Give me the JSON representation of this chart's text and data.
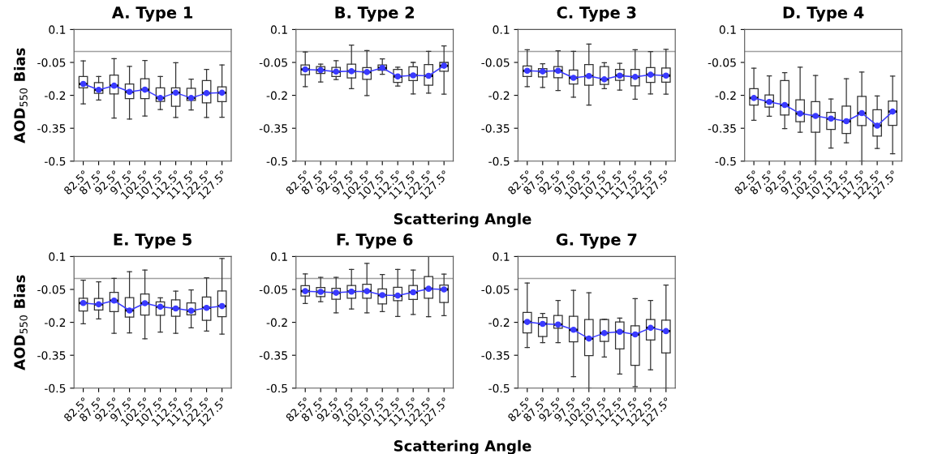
{
  "chart_data": [
    {
      "type": "box",
      "title": "A. Type 1",
      "ylabel": "AOD$_{550}$ Bias",
      "categories": [
        "82.5°",
        "87.5°",
        "92.5°",
        "97.5°",
        "102.5°",
        "107.5°",
        "112.5°",
        "117.5°",
        "122.5°",
        "127.5°"
      ],
      "ylim": [
        -0.5,
        0.1
      ],
      "yticks": [
        0.1,
        -0.05,
        -0.2,
        -0.35,
        -0.5
      ],
      "ref_lines": [
        {
          "axis": "y",
          "value": 0,
          "color": "#a0a0a0"
        }
      ],
      "marker": "circle",
      "boxes": [
        {
          "low": -0.239,
          "q1": -0.166,
          "median": -0.148,
          "q3": -0.114,
          "high": -0.043
        },
        {
          "low": -0.221,
          "q1": -0.191,
          "median": -0.175,
          "q3": -0.142,
          "high": -0.114
        },
        {
          "low": -0.304,
          "q1": -0.194,
          "median": -0.156,
          "q3": -0.108,
          "high": -0.033
        },
        {
          "low": -0.308,
          "q1": -0.215,
          "median": -0.184,
          "q3": -0.148,
          "high": -0.068
        },
        {
          "low": -0.294,
          "q1": -0.215,
          "median": -0.174,
          "q3": -0.124,
          "high": -0.041
        },
        {
          "low": -0.265,
          "q1": -0.228,
          "median": -0.212,
          "q3": -0.166,
          "high": -0.114
        },
        {
          "low": -0.301,
          "q1": -0.25,
          "median": -0.188,
          "q3": -0.166,
          "high": -0.051
        },
        {
          "low": -0.267,
          "q1": -0.223,
          "median": -0.212,
          "q3": -0.168,
          "high": -0.126
        },
        {
          "low": -0.301,
          "q1": -0.234,
          "median": -0.19,
          "q3": -0.133,
          "high": -0.082
        },
        {
          "low": -0.3,
          "q1": -0.229,
          "median": -0.188,
          "q3": -0.161,
          "high": -0.062
        }
      ],
      "series": [
        {
          "type": "line",
          "color": "#3a3aff",
          "values": [
            -0.148,
            -0.175,
            -0.156,
            -0.184,
            -0.174,
            -0.212,
            -0.188,
            -0.212,
            -0.19,
            -0.188
          ]
        }
      ]
    },
    {
      "type": "box",
      "title": "B. Type 2",
      "xlabel": "Scattering Angle",
      "categories": [
        "82.5°",
        "87.5°",
        "92.5°",
        "97.5°",
        "102.5°",
        "107.5°",
        "112.5°",
        "117.5°",
        "122.5°",
        "127.5°"
      ],
      "ylim": [
        -0.5,
        0.1
      ],
      "yticks": [
        0.1,
        -0.05,
        -0.2,
        -0.35,
        -0.5
      ],
      "ref_lines": [
        {
          "axis": "y",
          "value": 0,
          "color": "#a0a0a0"
        }
      ],
      "marker": "circle",
      "boxes": [
        {
          "low": -0.16,
          "q1": -0.106,
          "median": -0.082,
          "q3": -0.062,
          "high": -0.002
        },
        {
          "low": -0.139,
          "q1": -0.1,
          "median": -0.085,
          "q3": -0.069,
          "high": -0.058
        },
        {
          "low": -0.128,
          "q1": -0.114,
          "median": -0.092,
          "q3": -0.073,
          "high": -0.042
        },
        {
          "low": -0.17,
          "q1": -0.121,
          "median": -0.09,
          "q3": -0.058,
          "high": 0.029
        },
        {
          "low": -0.201,
          "q1": -0.127,
          "median": -0.094,
          "q3": -0.074,
          "high": 0.004
        },
        {
          "low": -0.104,
          "q1": -0.086,
          "median": -0.075,
          "q3": -0.062,
          "high": -0.034
        },
        {
          "low": -0.158,
          "q1": -0.141,
          "median": -0.114,
          "q3": -0.082,
          "high": -0.072
        },
        {
          "low": -0.194,
          "q1": -0.133,
          "median": -0.109,
          "q3": -0.07,
          "high": -0.05
        },
        {
          "low": -0.19,
          "q1": -0.154,
          "median": -0.111,
          "q3": -0.06,
          "high": 0.0
        },
        {
          "low": -0.195,
          "q1": -0.09,
          "median": -0.065,
          "q3": -0.05,
          "high": 0.025
        }
      ],
      "series": [
        {
          "type": "line",
          "color": "#3a3aff",
          "values": [
            -0.082,
            -0.085,
            -0.092,
            -0.09,
            -0.094,
            -0.075,
            -0.114,
            -0.109,
            -0.111,
            -0.065
          ]
        }
      ]
    },
    {
      "type": "box",
      "title": "C. Type 3",
      "categories": [
        "82.5°",
        "87.5°",
        "92.5°",
        "97.5°",
        "102.5°",
        "107.5°",
        "112.5°",
        "117.5°",
        "122.5°",
        "127.5°"
      ],
      "ylim": [
        -0.5,
        0.1
      ],
      "yticks": [
        0.1,
        -0.05,
        -0.2,
        -0.35,
        -0.5
      ],
      "ref_lines": [
        {
          "axis": "y",
          "value": 0,
          "color": "#a0a0a0"
        }
      ],
      "marker": "circle",
      "boxes": [
        {
          "low": -0.16,
          "q1": -0.114,
          "median": -0.088,
          "q3": -0.066,
          "high": 0.008
        },
        {
          "low": -0.164,
          "q1": -0.116,
          "median": -0.091,
          "q3": -0.078,
          "high": -0.056
        },
        {
          "low": -0.178,
          "q1": -0.12,
          "median": -0.088,
          "q3": -0.069,
          "high": 0.003
        },
        {
          "low": -0.208,
          "q1": -0.148,
          "median": -0.12,
          "q3": -0.085,
          "high": 0.0
        },
        {
          "low": -0.244,
          "q1": -0.154,
          "median": -0.112,
          "q3": -0.06,
          "high": 0.034
        },
        {
          "low": -0.17,
          "q1": -0.15,
          "median": -0.127,
          "q3": -0.069,
          "high": -0.051
        },
        {
          "low": -0.176,
          "q1": -0.132,
          "median": -0.11,
          "q3": -0.082,
          "high": -0.054
        },
        {
          "low": -0.218,
          "q1": -0.157,
          "median": -0.116,
          "q3": -0.082,
          "high": 0.008
        },
        {
          "low": -0.194,
          "q1": -0.141,
          "median": -0.106,
          "q3": -0.074,
          "high": -0.001
        },
        {
          "low": -0.195,
          "q1": -0.14,
          "median": -0.11,
          "q3": -0.075,
          "high": 0.01
        }
      ],
      "series": [
        {
          "type": "line",
          "color": "#3a3aff",
          "values": [
            -0.088,
            -0.091,
            -0.088,
            -0.12,
            -0.112,
            -0.127,
            -0.11,
            -0.116,
            -0.106,
            -0.11
          ]
        }
      ]
    },
    {
      "type": "box",
      "title": "D. Type 4",
      "categories": [
        "82.5°",
        "87.5°",
        "92.5°",
        "97.5°",
        "102.5°",
        "107.5°",
        "112.5°",
        "117.5°",
        "122.5°",
        "127.5°"
      ],
      "ylim": [
        -0.5,
        0.1
      ],
      "yticks": [
        0.1,
        -0.05,
        -0.2,
        -0.35,
        -0.5
      ],
      "ref_lines": [
        {
          "axis": "y",
          "value": 0,
          "color": "#a0a0a0"
        }
      ],
      "marker": "circle",
      "boxes": [
        {
          "low": -0.314,
          "q1": -0.244,
          "median": -0.212,
          "q3": -0.17,
          "high": -0.076
        },
        {
          "low": -0.295,
          "q1": -0.254,
          "median": -0.23,
          "q3": -0.198,
          "high": -0.111
        },
        {
          "low": -0.352,
          "q1": -0.29,
          "median": -0.244,
          "q3": -0.133,
          "high": -0.097
        },
        {
          "low": -0.368,
          "q1": -0.32,
          "median": -0.283,
          "q3": -0.22,
          "high": -0.072
        },
        {
          "low": -0.5,
          "q1": -0.368,
          "median": -0.294,
          "q3": -0.229,
          "high": -0.11
        },
        {
          "low": -0.44,
          "q1": -0.355,
          "median": -0.306,
          "q3": -0.278,
          "high": -0.217
        },
        {
          "low": -0.416,
          "q1": -0.374,
          "median": -0.318,
          "q3": -0.249,
          "high": -0.124
        },
        {
          "low": -0.5,
          "q1": -0.338,
          "median": -0.281,
          "q3": -0.205,
          "high": -0.094
        },
        {
          "low": -0.442,
          "q1": -0.386,
          "median": -0.338,
          "q3": -0.266,
          "high": -0.203
        },
        {
          "low": -0.466,
          "q1": -0.337,
          "median": -0.274,
          "q3": -0.226,
          "high": -0.112
        }
      ],
      "series": [
        {
          "type": "line",
          "color": "#3a3aff",
          "values": [
            -0.212,
            -0.23,
            -0.244,
            -0.283,
            -0.294,
            -0.306,
            -0.318,
            -0.281,
            -0.338,
            -0.274
          ]
        }
      ]
    },
    {
      "type": "box",
      "title": "E. Type 5",
      "ylabel": "AOD$_{550}$ Bias",
      "categories": [
        "82.5°",
        "87.5°",
        "92.5°",
        "97.5°",
        "102.5°",
        "107.5°",
        "112.5°",
        "117.5°",
        "122.5°",
        "127.5°"
      ],
      "ylim": [
        -0.5,
        0.1
      ],
      "yticks": [
        0.1,
        -0.05,
        -0.2,
        -0.35,
        -0.5
      ],
      "ref_lines": [
        {
          "axis": "y",
          "value": 0,
          "color": "#a0a0a0"
        }
      ],
      "marker": "circle",
      "boxes": [
        {
          "low": -0.207,
          "q1": -0.148,
          "median": -0.112,
          "q3": -0.09,
          "high": -0.008
        },
        {
          "low": -0.184,
          "q1": -0.144,
          "median": -0.118,
          "q3": -0.091,
          "high": -0.015
        },
        {
          "low": -0.25,
          "q1": -0.151,
          "median": -0.101,
          "q3": -0.063,
          "high": 0.0
        },
        {
          "low": -0.248,
          "q1": -0.176,
          "median": -0.146,
          "q3": -0.087,
          "high": 0.031
        },
        {
          "low": -0.275,
          "q1": -0.167,
          "median": -0.113,
          "q3": -0.071,
          "high": 0.038
        },
        {
          "low": -0.244,
          "q1": -0.168,
          "median": -0.129,
          "q3": -0.107,
          "high": -0.088
        },
        {
          "low": -0.25,
          "q1": -0.172,
          "median": -0.137,
          "q3": -0.098,
          "high": -0.058
        },
        {
          "low": -0.225,
          "q1": -0.166,
          "median": -0.147,
          "q3": -0.111,
          "high": -0.052
        },
        {
          "low": -0.24,
          "q1": -0.191,
          "median": -0.134,
          "q3": -0.085,
          "high": 0.003
        },
        {
          "low": -0.254,
          "q1": -0.174,
          "median": -0.126,
          "q3": -0.057,
          "high": 0.091
        }
      ],
      "series": [
        {
          "type": "line",
          "color": "#3a3aff",
          "values": [
            -0.112,
            -0.118,
            -0.101,
            -0.146,
            -0.113,
            -0.129,
            -0.137,
            -0.147,
            -0.134,
            -0.126
          ]
        }
      ]
    },
    {
      "type": "box",
      "title": "F. Type 6",
      "xlabel": "Scattering Angle",
      "categories": [
        "82.5°",
        "87.5°",
        "92.5°",
        "97.5°",
        "102.5°",
        "107.5°",
        "112.5°",
        "117.5°",
        "122.5°",
        "127.5°"
      ],
      "ylim": [
        -0.5,
        0.1
      ],
      "yticks": [
        0.1,
        -0.05,
        -0.2,
        -0.35,
        -0.5
      ],
      "ref_lines": [
        {
          "axis": "y",
          "value": 0,
          "color": "#a0a0a0"
        }
      ],
      "marker": "circle",
      "boxes": [
        {
          "low": -0.114,
          "q1": -0.08,
          "median": -0.058,
          "q3": -0.033,
          "high": 0.021
        },
        {
          "low": -0.106,
          "q1": -0.083,
          "median": -0.061,
          "q3": -0.041,
          "high": 0.005
        },
        {
          "low": -0.157,
          "q1": -0.095,
          "median": -0.065,
          "q3": -0.045,
          "high": 0.005
        },
        {
          "low": -0.139,
          "q1": -0.09,
          "median": -0.06,
          "q3": -0.032,
          "high": 0.041
        },
        {
          "low": -0.157,
          "q1": -0.09,
          "median": -0.058,
          "q3": -0.026,
          "high": 0.069
        },
        {
          "low": -0.151,
          "q1": -0.116,
          "median": -0.076,
          "q3": -0.048,
          "high": 0.018
        },
        {
          "low": -0.173,
          "q1": -0.101,
          "median": -0.078,
          "q3": -0.04,
          "high": 0.041
        },
        {
          "low": -0.164,
          "q1": -0.096,
          "median": -0.063,
          "q3": -0.032,
          "high": 0.038
        },
        {
          "low": -0.174,
          "q1": -0.09,
          "median": -0.047,
          "q3": 0.009,
          "high": 0.1
        },
        {
          "low": -0.17,
          "q1": -0.11,
          "median": -0.05,
          "q3": -0.03,
          "high": 0.02
        }
      ],
      "series": [
        {
          "type": "line",
          "color": "#3a3aff",
          "values": [
            -0.058,
            -0.061,
            -0.065,
            -0.06,
            -0.058,
            -0.076,
            -0.078,
            -0.063,
            -0.047,
            -0.05
          ]
        }
      ]
    },
    {
      "type": "box",
      "title": "G. Type 7",
      "categories": [
        "82.5°",
        "87.5°",
        "92.5°",
        "97.5°",
        "102.5°",
        "107.5°",
        "112.5°",
        "117.5°",
        "122.5°",
        "127.5°"
      ],
      "ylim": [
        -0.5,
        0.1
      ],
      "yticks": [
        0.1,
        -0.05,
        -0.2,
        -0.35,
        -0.5
      ],
      "ref_lines": [
        {
          "axis": "y",
          "value": 0,
          "color": "#a0a0a0"
        }
      ],
      "marker": "circle",
      "boxes": [
        {
          "low": -0.315,
          "q1": -0.248,
          "median": -0.198,
          "q3": -0.155,
          "high": -0.021
        },
        {
          "low": -0.292,
          "q1": -0.265,
          "median": -0.207,
          "q3": -0.178,
          "high": -0.159
        },
        {
          "low": -0.292,
          "q1": -0.227,
          "median": -0.21,
          "q3": -0.169,
          "high": -0.1
        },
        {
          "low": -0.448,
          "q1": -0.289,
          "median": -0.234,
          "q3": -0.172,
          "high": -0.054
        },
        {
          "low": -0.5,
          "q1": -0.352,
          "median": -0.274,
          "q3": -0.187,
          "high": -0.065
        },
        {
          "low": -0.358,
          "q1": -0.287,
          "median": -0.249,
          "q3": -0.187,
          "high": -0.186
        },
        {
          "low": -0.436,
          "q1": -0.321,
          "median": -0.243,
          "q3": -0.198,
          "high": -0.181
        },
        {
          "low": -0.493,
          "q1": -0.396,
          "median": -0.255,
          "q3": -0.216,
          "high": -0.092
        },
        {
          "low": -0.416,
          "q1": -0.28,
          "median": -0.225,
          "q3": -0.187,
          "high": -0.1
        },
        {
          "low": -0.5,
          "q1": -0.34,
          "median": -0.24,
          "q3": -0.19,
          "high": -0.03
        }
      ],
      "series": [
        {
          "type": "line",
          "color": "#3a3aff",
          "values": [
            -0.198,
            -0.207,
            -0.21,
            -0.234,
            -0.274,
            -0.249,
            -0.243,
            -0.255,
            -0.225,
            -0.24
          ]
        }
      ]
    }
  ]
}
